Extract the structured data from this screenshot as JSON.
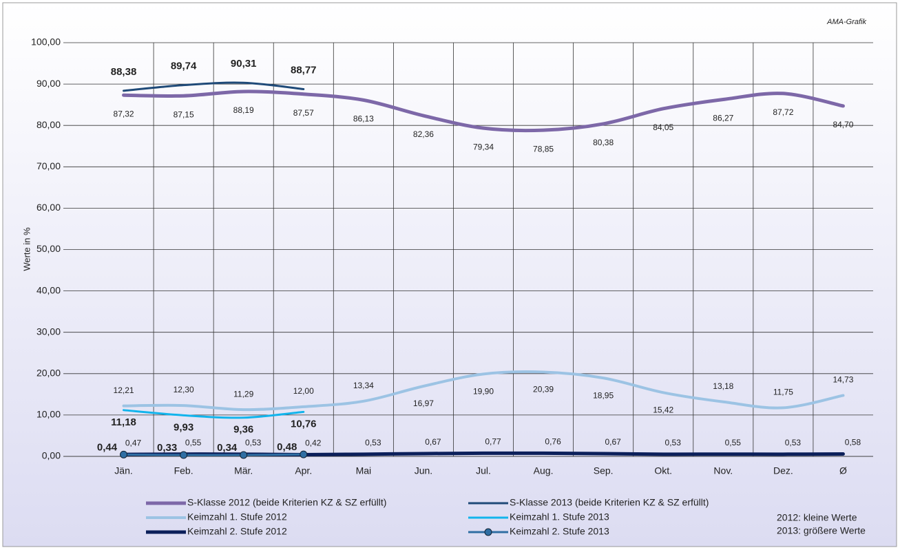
{
  "chart_data": {
    "type": "line",
    "source": "AMA-Grafik",
    "y_label": "Werte in %",
    "notes": [
      "2012: kleine Werte",
      "2013: größere Werte"
    ],
    "categories": [
      "Jän.",
      "Feb.",
      "Mär.",
      "Apr.",
      "Mai",
      "Jun.",
      "Jul.",
      "Aug.",
      "Sep.",
      "Okt.",
      "Nov.",
      "Dez.",
      "Ø"
    ],
    "ylim": [
      0,
      100
    ],
    "yticks": [
      {
        "value": 0,
        "label": "0,00"
      },
      {
        "value": 10,
        "label": "10,00"
      },
      {
        "value": 20,
        "label": "20,00"
      },
      {
        "value": 30,
        "label": "30,00"
      },
      {
        "value": 40,
        "label": "40,00"
      },
      {
        "value": 50,
        "label": "50,00"
      },
      {
        "value": 60,
        "label": "60,00"
      },
      {
        "value": 70,
        "label": "70,00"
      },
      {
        "value": 80,
        "label": "80,00"
      },
      {
        "value": 90,
        "label": "90,00"
      },
      {
        "value": 100,
        "label": "100,00"
      }
    ],
    "grid": true,
    "series": [
      {
        "name": "S-Klasse 2012 (beide Kriterien KZ & SZ erfüllt)",
        "color": "#7d68a8",
        "values": [
          87.32,
          87.15,
          88.19,
          87.57,
          86.13,
          82.36,
          79.34,
          78.85,
          80.38,
          84.05,
          86.27,
          87.72,
          84.7
        ],
        "value_labels": [
          "87,32",
          "87,15",
          "88,19",
          "87,57",
          "86,13",
          "82,36",
          "79,34",
          "78,85",
          "80,38",
          "84,05",
          "86,27",
          "87,72",
          "84,70"
        ]
      },
      {
        "name": "S-Klasse 2013 (beide Kriterien KZ & SZ erfüllt)",
        "color": "#1f4a78",
        "values": [
          88.38,
          89.74,
          90.31,
          88.77,
          null,
          null,
          null,
          null,
          null,
          null,
          null,
          null,
          null
        ],
        "value_labels": [
          "88,38",
          "89,74",
          "90,31",
          "88,77",
          null,
          null,
          null,
          null,
          null,
          null,
          null,
          null,
          null
        ]
      },
      {
        "name": "Keimzahl 1. Stufe 2012",
        "color": "#9cc3e4",
        "values": [
          12.21,
          12.3,
          11.29,
          12.0,
          13.34,
          16.97,
          19.9,
          20.39,
          18.95,
          15.42,
          13.18,
          11.75,
          14.73
        ],
        "value_labels": [
          "12,21",
          "12,30",
          "11,29",
          "12,00",
          "13,34",
          "16,97",
          "19,90",
          "20,39",
          "18,95",
          "15,42",
          "13,18",
          "11,75",
          "14,73"
        ]
      },
      {
        "name": "Keimzahl 1. Stufe 2013",
        "color": "#12b4ec",
        "values": [
          11.18,
          9.93,
          9.36,
          10.76,
          null,
          null,
          null,
          null,
          null,
          null,
          null,
          null,
          null
        ],
        "value_labels": [
          "11,18",
          "9,93",
          "9,36",
          "10,76",
          null,
          null,
          null,
          null,
          null,
          null,
          null,
          null,
          null
        ]
      },
      {
        "name": "Keimzahl 2. Stufe 2012",
        "color": "#0b1f5a",
        "values": [
          0.47,
          0.55,
          0.53,
          0.42,
          0.53,
          0.67,
          0.77,
          0.76,
          0.67,
          0.53,
          0.55,
          0.53,
          0.58
        ],
        "value_labels": [
          "0,47",
          "0,55",
          "0,53",
          "0,42",
          "0,53",
          "0,67",
          "0,77",
          "0,76",
          "0,67",
          "0,53",
          "0,55",
          "0,53",
          "0,58"
        ]
      },
      {
        "name": "Keimzahl 2. Stufe 2013",
        "color": "#2f6ea3",
        "marker": true,
        "values": [
          0.44,
          0.33,
          0.34,
          0.48,
          null,
          null,
          null,
          null,
          null,
          null,
          null,
          null,
          null
        ],
        "value_labels": [
          "0,44",
          "0,33",
          "0,34",
          "0,48",
          null,
          null,
          null,
          null,
          null,
          null,
          null,
          null,
          null
        ]
      }
    ]
  }
}
